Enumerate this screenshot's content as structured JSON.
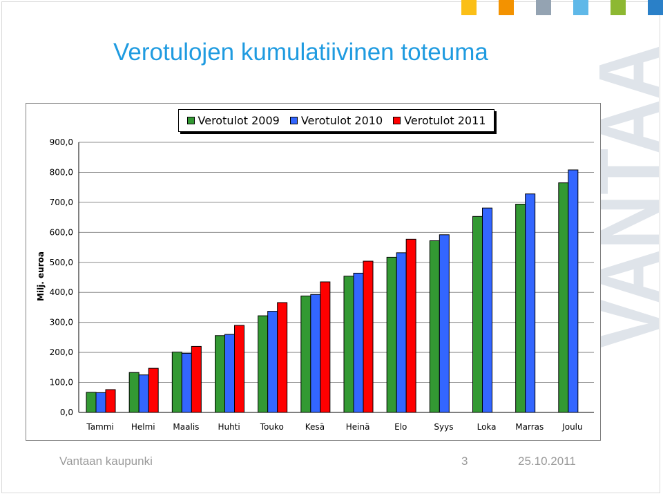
{
  "slide": {
    "title": "Verotulojen kumulatiivinen toteuma",
    "watermark_text": "VANTAA",
    "header_square_colors": [
      "#fbbf17",
      "#f39200",
      "#94a3b2",
      "#5fb8e8",
      "#8db832",
      "#2a80c8"
    ]
  },
  "footer": {
    "organization": "Vantaan kaupunki",
    "page_number": "3",
    "date": "25.10.2011"
  },
  "chart_data": {
    "type": "bar",
    "title": "",
    "xlabel": "",
    "ylabel": "Milj. euroa",
    "ylim": [
      0,
      900
    ],
    "yticks": [
      "0,0",
      "100,0",
      "200,0",
      "300,0",
      "400,0",
      "500,0",
      "600,0",
      "700,0",
      "800,0",
      "900,0"
    ],
    "grid": true,
    "legend_position": "top",
    "categories": [
      "Tammi",
      "Helmi",
      "Maalis",
      "Huhti",
      "Touko",
      "Kesä",
      "Heinä",
      "Elo",
      "Syys",
      "Loka",
      "Marras",
      "Joulu"
    ],
    "series": [
      {
        "name": "Verotulot 2009",
        "color": "#339933",
        "values": [
          67,
          133,
          201,
          256,
          322,
          388,
          454,
          517,
          572,
          653,
          694,
          765
        ]
      },
      {
        "name": "Verotulot 2010",
        "color": "#3366ff",
        "values": [
          66,
          125,
          197,
          260,
          337,
          393,
          464,
          532,
          592,
          681,
          728,
          808
        ]
      },
      {
        "name": "Verotulot 2011",
        "color": "#ff0000",
        "values": [
          76,
          147,
          220,
          290,
          366,
          435,
          504,
          577,
          null,
          null,
          null,
          null
        ]
      }
    ]
  }
}
